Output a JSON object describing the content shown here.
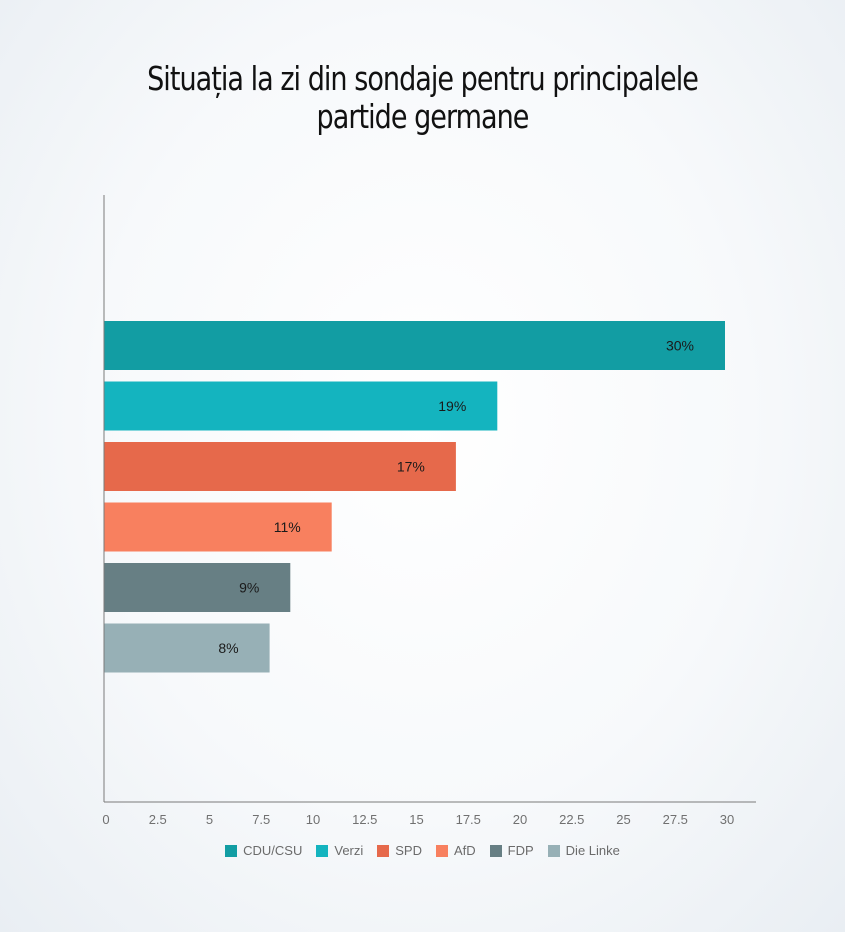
{
  "title_lines": [
    "Situația la zi din sondaje pentru principalele",
    "partide germane"
  ],
  "chart_data": {
    "type": "bar",
    "orientation": "horizontal",
    "title": "Situația la zi din sondaje pentru principalele partide germane",
    "xlim": [
      0,
      30
    ],
    "x_ticks": [
      "0",
      "2.5",
      "5",
      "7.5",
      "10",
      "12.5",
      "15",
      "17.5",
      "20",
      "22.5",
      "25",
      "27.5",
      "30"
    ],
    "grid": false,
    "legend_position": "bottom",
    "series": [
      {
        "name": "CDU/CSU",
        "value": 30,
        "label": "30%",
        "color": "#129da3"
      },
      {
        "name": "Verzi",
        "value": 19,
        "label": "19%",
        "color": "#14b4bf"
      },
      {
        "name": "SPD",
        "value": 17,
        "label": "17%",
        "color": "#e6694b"
      },
      {
        "name": "AfD",
        "value": 11,
        "label": "11%",
        "color": "#f8805f"
      },
      {
        "name": "FDP",
        "value": 9,
        "label": "9%",
        "color": "#677f84"
      },
      {
        "name": "Die Linke",
        "value": 8,
        "label": "8%",
        "color": "#97b0b6"
      }
    ]
  }
}
